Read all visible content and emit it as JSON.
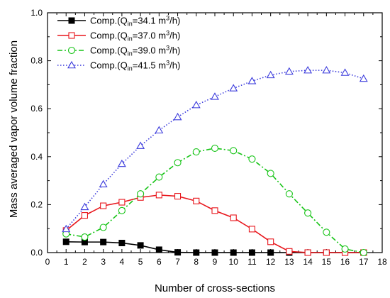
{
  "chart_data": {
    "type": "line",
    "xlabel": "Number of cross-sections",
    "ylabel": "Mass averaged vapor volume fraction",
    "xlim": [
      0,
      18
    ],
    "ylim": [
      0.0,
      1.0
    ],
    "xticks": [
      0,
      1,
      2,
      3,
      4,
      5,
      6,
      7,
      8,
      9,
      10,
      11,
      12,
      13,
      14,
      15,
      16,
      17,
      18
    ],
    "yticks": [
      "0.0",
      "0.2",
      "0.4",
      "0.6",
      "0.8",
      "1.0"
    ],
    "grid": false,
    "legend_position": "top-left",
    "x": [
      1,
      2,
      3,
      4,
      5,
      6,
      7,
      8,
      9,
      10,
      11,
      12,
      13,
      14,
      15,
      16,
      17
    ],
    "series": [
      {
        "name": "Comp.(Q_in=34.1 m^3/h)",
        "legend": {
          "pre": "Comp.(Q",
          "sub": "in",
          "mid": "=34.1 m",
          "sup": "3",
          "post": "/h)"
        },
        "color": "#000000",
        "line_style": "solid",
        "marker": "filled-square",
        "values": [
          0.045,
          0.044,
          0.044,
          0.04,
          0.03,
          0.012,
          0.001,
          0.0,
          0.0,
          0.0,
          0.0,
          0.0,
          0.0,
          0.0,
          0.0,
          0.0,
          0.0
        ]
      },
      {
        "name": "Comp.(Q_in=37.0 m^3/h)",
        "legend": {
          "pre": "Comp.(Q",
          "sub": "in",
          "mid": "=37.0 m",
          "sup": "3",
          "post": "/h)"
        },
        "color": "#e8161c",
        "line_style": "solid",
        "marker": "open-square",
        "values": [
          0.092,
          0.155,
          0.195,
          0.21,
          0.23,
          0.24,
          0.235,
          0.215,
          0.175,
          0.145,
          0.098,
          0.045,
          0.005,
          0.0,
          0.0,
          0.0,
          0.0
        ]
      },
      {
        "name": "Comp.(Q_in=39.0 m^3/h)",
        "legend": {
          "pre": "Comp.(Q",
          "sub": "in",
          "mid": "=39.0 m",
          "sup": "3",
          "post": "/h)"
        },
        "color": "#17c417",
        "line_style": "dashdot",
        "marker": "open-circle",
        "values": [
          0.078,
          0.065,
          0.105,
          0.175,
          0.245,
          0.315,
          0.375,
          0.42,
          0.435,
          0.425,
          0.39,
          0.33,
          0.245,
          0.165,
          0.085,
          0.015,
          0.0
        ]
      },
      {
        "name": "Comp.(Q_in=41.5 m^3/h)",
        "legend": {
          "pre": "Comp.(Q",
          "sub": "in",
          "mid": "=41.5 m",
          "sup": "3",
          "post": "/h)"
        },
        "color": "#3b3bdc",
        "line_style": "dotted",
        "marker": "open-triangle",
        "values": [
          0.098,
          0.19,
          0.285,
          0.37,
          0.445,
          0.51,
          0.565,
          0.615,
          0.65,
          0.685,
          0.715,
          0.74,
          0.755,
          0.76,
          0.76,
          0.75,
          0.725
        ]
      }
    ]
  }
}
